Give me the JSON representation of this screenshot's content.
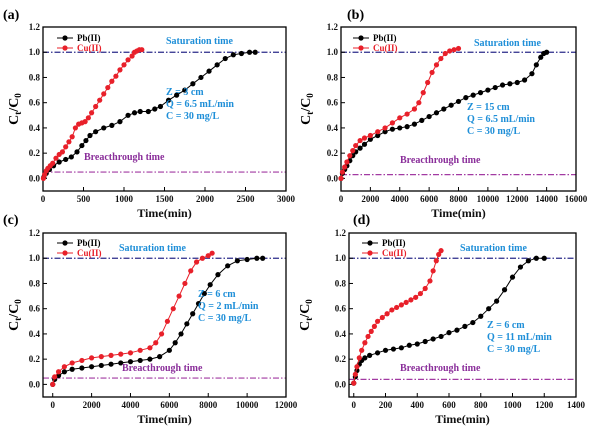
{
  "chart_data": [
    {
      "type": "line",
      "panel_label": "(a)",
      "xlabel": "Time(min)",
      "ylabel": "C",
      "ylabel_sub_t": "t",
      "ylabel_sep": "/C",
      "ylabel_sub_0": "0",
      "xlim": [
        0,
        3000
      ],
      "ylim": [
        -0.1,
        1.2
      ],
      "xticks": [
        0,
        500,
        1000,
        1500,
        2000,
        2500,
        3000
      ],
      "yticks": [
        0.0,
        0.2,
        0.4,
        0.6,
        0.8,
        1.0,
        1.2
      ],
      "saturation_label": "Saturation time",
      "saturation_y": 1.0,
      "breakthrough_label": "Breacthrough time",
      "breakthrough_y": 0.05,
      "conditions": [
        "Z = 3 cm",
        "Q = 6.5 mL/min",
        "C = 30 mg/L"
      ],
      "series": [
        {
          "name": "Pb(II)",
          "color": "#000000",
          "points": [
            [
              10,
              0.01
            ],
            [
              40,
              0.04
            ],
            [
              80,
              0.07
            ],
            [
              130,
              0.1
            ],
            [
              200,
              0.13
            ],
            [
              280,
              0.15
            ],
            [
              350,
              0.17
            ],
            [
              420,
              0.21
            ],
            [
              480,
              0.26
            ],
            [
              530,
              0.3
            ],
            [
              580,
              0.34
            ],
            [
              650,
              0.37
            ],
            [
              750,
              0.4
            ],
            [
              850,
              0.42
            ],
            [
              950,
              0.45
            ],
            [
              1050,
              0.5
            ],
            [
              1130,
              0.52
            ],
            [
              1200,
              0.53
            ],
            [
              1300,
              0.53
            ],
            [
              1380,
              0.55
            ],
            [
              1450,
              0.57
            ],
            [
              1550,
              0.62
            ],
            [
              1650,
              0.66
            ],
            [
              1750,
              0.7
            ],
            [
              1850,
              0.75
            ],
            [
              1950,
              0.8
            ],
            [
              2050,
              0.85
            ],
            [
              2150,
              0.9
            ],
            [
              2250,
              0.95
            ],
            [
              2350,
              0.98
            ],
            [
              2450,
              0.99
            ],
            [
              2550,
              1.0
            ],
            [
              2620,
              1.0
            ]
          ]
        },
        {
          "name": "Cu(II)",
          "color": "#e8202a",
          "points": [
            [
              5,
              0.0
            ],
            [
              20,
              0.03
            ],
            [
              40,
              0.06
            ],
            [
              60,
              0.08
            ],
            [
              90,
              0.1
            ],
            [
              120,
              0.12
            ],
            [
              160,
              0.16
            ],
            [
              200,
              0.19
            ],
            [
              240,
              0.21
            ],
            [
              280,
              0.25
            ],
            [
              320,
              0.29
            ],
            [
              360,
              0.33
            ],
            [
              400,
              0.4
            ],
            [
              440,
              0.43
            ],
            [
              480,
              0.44
            ],
            [
              520,
              0.45
            ],
            [
              560,
              0.48
            ],
            [
              600,
              0.52
            ],
            [
              650,
              0.57
            ],
            [
              700,
              0.62
            ],
            [
              750,
              0.67
            ],
            [
              800,
              0.72
            ],
            [
              850,
              0.77
            ],
            [
              900,
              0.81
            ],
            [
              950,
              0.86
            ],
            [
              1000,
              0.9
            ],
            [
              1050,
              0.94
            ],
            [
              1100,
              0.97
            ],
            [
              1130,
              1.0
            ],
            [
              1160,
              1.01
            ],
            [
              1190,
              1.02
            ],
            [
              1220,
              1.02
            ]
          ]
        }
      ]
    },
    {
      "type": "line",
      "panel_label": "(b)",
      "xlabel": "Time(min)",
      "ylabel": "C",
      "ylabel_sub_t": "t",
      "ylabel_sep": "/C",
      "ylabel_sub_0": "0",
      "xlim": [
        0,
        16000
      ],
      "ylim": [
        -0.1,
        1.2
      ],
      "xticks": [
        0,
        2000,
        4000,
        6000,
        8000,
        10000,
        12000,
        14000,
        16000
      ],
      "yticks": [
        0.0,
        0.2,
        0.4,
        0.6,
        0.8,
        1.0,
        1.2
      ],
      "saturation_label": "Saturation time",
      "saturation_y": 1.0,
      "breakthrough_label": "Breacthrough time",
      "breakthrough_y": 0.03,
      "conditions": [
        "Z = 15 cm",
        "Q = 6.5 mL/min",
        "C = 30 mg/L"
      ],
      "series": [
        {
          "name": "Pb(II)",
          "color": "#000000",
          "points": [
            [
              0,
              0.0
            ],
            [
              100,
              0.04
            ],
            [
              250,
              0.07
            ],
            [
              400,
              0.1
            ],
            [
              600,
              0.14
            ],
            [
              800,
              0.18
            ],
            [
              1000,
              0.21
            ],
            [
              1300,
              0.24
            ],
            [
              1600,
              0.27
            ],
            [
              2000,
              0.31
            ],
            [
              2500,
              0.34
            ],
            [
              3000,
              0.37
            ],
            [
              3500,
              0.39
            ],
            [
              4000,
              0.4
            ],
            [
              4500,
              0.41
            ],
            [
              5000,
              0.43
            ],
            [
              5500,
              0.46
            ],
            [
              6000,
              0.49
            ],
            [
              6500,
              0.52
            ],
            [
              7000,
              0.55
            ],
            [
              7500,
              0.58
            ],
            [
              8000,
              0.61
            ],
            [
              8500,
              0.64
            ],
            [
              9000,
              0.66
            ],
            [
              9500,
              0.68
            ],
            [
              10000,
              0.7
            ],
            [
              10500,
              0.72
            ],
            [
              11000,
              0.74
            ],
            [
              11500,
              0.75
            ],
            [
              12000,
              0.76
            ],
            [
              12500,
              0.78
            ],
            [
              13000,
              0.83
            ],
            [
              13300,
              0.9
            ],
            [
              13600,
              0.96
            ],
            [
              13800,
              0.99
            ],
            [
              14000,
              1.0
            ]
          ]
        },
        {
          "name": "Cu(II)",
          "color": "#e8202a",
          "points": [
            [
              0,
              0.0
            ],
            [
              100,
              0.05
            ],
            [
              250,
              0.09
            ],
            [
              400,
              0.13
            ],
            [
              600,
              0.18
            ],
            [
              800,
              0.22
            ],
            [
              1000,
              0.26
            ],
            [
              1300,
              0.3
            ],
            [
              1600,
              0.32
            ],
            [
              2000,
              0.34
            ],
            [
              2500,
              0.37
            ],
            [
              3000,
              0.4
            ],
            [
              3500,
              0.44
            ],
            [
              4000,
              0.48
            ],
            [
              4500,
              0.51
            ],
            [
              5000,
              0.55
            ],
            [
              5300,
              0.6
            ],
            [
              5600,
              0.68
            ],
            [
              5900,
              0.76
            ],
            [
              6200,
              0.84
            ],
            [
              6500,
              0.9
            ],
            [
              6800,
              0.95
            ],
            [
              7100,
              0.99
            ],
            [
              7400,
              1.01
            ],
            [
              7700,
              1.02
            ],
            [
              8000,
              1.03
            ]
          ]
        }
      ]
    },
    {
      "type": "line",
      "panel_label": "(c)",
      "xlabel": "Time(min)",
      "ylabel": "C",
      "ylabel_sub_t": "t",
      "ylabel_sep": "/C",
      "ylabel_sub_0": "0",
      "xlim": [
        -500,
        12000
      ],
      "ylim": [
        -0.1,
        1.2
      ],
      "xticks": [
        0,
        2000,
        4000,
        6000,
        8000,
        10000,
        12000
      ],
      "yticks": [
        0.0,
        0.2,
        0.4,
        0.6,
        0.8,
        1.0,
        1.2
      ],
      "saturation_label": "Saturation time",
      "saturation_y": 1.0,
      "breakthrough_label": "Breacthrough time",
      "breakthrough_y": 0.05,
      "conditions": [
        "Z = 6 cm",
        "Q = 2 mL/min",
        "C = 30 mg/L"
      ],
      "series": [
        {
          "name": "Pb(II)",
          "color": "#000000",
          "points": [
            [
              0,
              0.0
            ],
            [
              100,
              0.04
            ],
            [
              300,
              0.07
            ],
            [
              600,
              0.1
            ],
            [
              1000,
              0.12
            ],
            [
              1500,
              0.13
            ],
            [
              2000,
              0.14
            ],
            [
              2500,
              0.15
            ],
            [
              3000,
              0.16
            ],
            [
              3500,
              0.17
            ],
            [
              4000,
              0.18
            ],
            [
              4500,
              0.19
            ],
            [
              5000,
              0.2
            ],
            [
              5500,
              0.22
            ],
            [
              6000,
              0.27
            ],
            [
              6300,
              0.33
            ],
            [
              6600,
              0.4
            ],
            [
              6900,
              0.48
            ],
            [
              7200,
              0.56
            ],
            [
              7500,
              0.64
            ],
            [
              7800,
              0.72
            ],
            [
              8100,
              0.79
            ],
            [
              8500,
              0.87
            ],
            [
              9000,
              0.94
            ],
            [
              9500,
              0.98
            ],
            [
              10000,
              0.99
            ],
            [
              10500,
              1.0
            ],
            [
              10800,
              1.0
            ]
          ]
        },
        {
          "name": "Cu(II)",
          "color": "#e8202a",
          "points": [
            [
              0,
              0.0
            ],
            [
              100,
              0.06
            ],
            [
              300,
              0.1
            ],
            [
              600,
              0.14
            ],
            [
              1000,
              0.17
            ],
            [
              1500,
              0.19
            ],
            [
              2000,
              0.21
            ],
            [
              2500,
              0.22
            ],
            [
              3000,
              0.23
            ],
            [
              3500,
              0.24
            ],
            [
              4000,
              0.25
            ],
            [
              4500,
              0.27
            ],
            [
              5000,
              0.29
            ],
            [
              5300,
              0.33
            ],
            [
              5600,
              0.4
            ],
            [
              5900,
              0.5
            ],
            [
              6200,
              0.6
            ],
            [
              6500,
              0.7
            ],
            [
              6800,
              0.8
            ],
            [
              7100,
              0.9
            ],
            [
              7400,
              0.97
            ],
            [
              7700,
              1.0
            ],
            [
              8000,
              1.02
            ],
            [
              8200,
              1.04
            ]
          ]
        }
      ]
    },
    {
      "type": "line",
      "panel_label": "(d)",
      "xlabel": "Time(min)",
      "ylabel": "C",
      "ylabel_sub_t": "t",
      "ylabel_sep": "/C",
      "ylabel_sub_0": "0",
      "xlim": [
        -30,
        1400
      ],
      "ylim": [
        -0.1,
        1.2
      ],
      "xticks": [
        0,
        200,
        400,
        600,
        800,
        1000,
        1200,
        1400
      ],
      "yticks": [
        0.0,
        0.2,
        0.4,
        0.6,
        0.8,
        1.0,
        1.2
      ],
      "saturation_label": "Saturation time",
      "saturation_y": 1.0,
      "breakthrough_label": "Breacthrough time",
      "breakthrough_y": 0.04,
      "conditions": [
        "Z = 6 cm",
        "Q = 11 mL/min",
        "C = 30 mg/L"
      ],
      "series": [
        {
          "name": "Pb(II)",
          "color": "#000000",
          "points": [
            [
              0,
              0.01
            ],
            [
              10,
              0.06
            ],
            [
              20,
              0.11
            ],
            [
              35,
              0.16
            ],
            [
              50,
              0.19
            ],
            [
              70,
              0.21
            ],
            [
              100,
              0.23
            ],
            [
              150,
              0.25
            ],
            [
              200,
              0.27
            ],
            [
              250,
              0.28
            ],
            [
              300,
              0.29
            ],
            [
              350,
              0.31
            ],
            [
              400,
              0.32
            ],
            [
              450,
              0.34
            ],
            [
              500,
              0.36
            ],
            [
              550,
              0.38
            ],
            [
              600,
              0.41
            ],
            [
              650,
              0.43
            ],
            [
              700,
              0.46
            ],
            [
              750,
              0.49
            ],
            [
              800,
              0.54
            ],
            [
              850,
              0.6
            ],
            [
              900,
              0.66
            ],
            [
              950,
              0.75
            ],
            [
              1000,
              0.85
            ],
            [
              1050,
              0.93
            ],
            [
              1100,
              0.98
            ],
            [
              1150,
              1.0
            ],
            [
              1200,
              1.0
            ]
          ]
        },
        {
          "name": "Cu(II)",
          "color": "#e8202a",
          "points": [
            [
              0,
              0.01
            ],
            [
              10,
              0.08
            ],
            [
              20,
              0.14
            ],
            [
              35,
              0.21
            ],
            [
              50,
              0.27
            ],
            [
              70,
              0.33
            ],
            [
              90,
              0.38
            ],
            [
              110,
              0.42
            ],
            [
              130,
              0.46
            ],
            [
              150,
              0.5
            ],
            [
              180,
              0.53
            ],
            [
              210,
              0.56
            ],
            [
              240,
              0.59
            ],
            [
              270,
              0.61
            ],
            [
              300,
              0.63
            ],
            [
              330,
              0.65
            ],
            [
              360,
              0.67
            ],
            [
              390,
              0.69
            ],
            [
              420,
              0.72
            ],
            [
              450,
              0.76
            ],
            [
              480,
              0.82
            ],
            [
              500,
              0.9
            ],
            [
              520,
              0.98
            ],
            [
              535,
              1.03
            ],
            [
              550,
              1.06
            ]
          ]
        }
      ]
    }
  ]
}
